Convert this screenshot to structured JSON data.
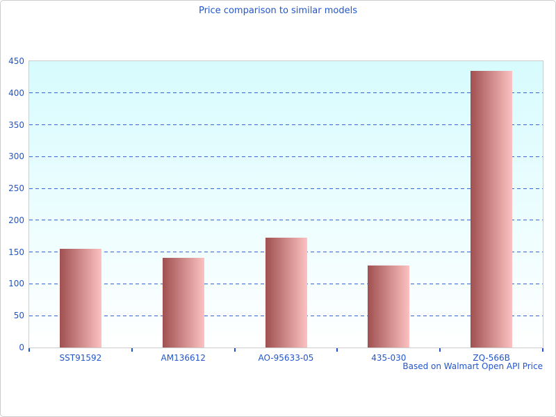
{
  "window": {
    "background_color": "#ffffff",
    "frame_border_color": "#cccccc"
  },
  "chart": {
    "title": "Price comparison to similar models",
    "footer_note": "Based on Walmart Open API Price",
    "text_color": "#2155cc",
    "grid_color": "#3366cc",
    "tick_color": "#2155cc",
    "plot_border_color": "#cccccc",
    "plot_bg_top": "#d7fbfd",
    "plot_bg_bottom": "#ffffff",
    "bar_gradient_left": "#a05050",
    "bar_gradient_right": "#fcc1c1"
  },
  "chart_data": {
    "type": "bar",
    "title": "Price comparison to similar models",
    "categories": [
      "SST91592",
      "AM136612",
      "AO-95633-05",
      "435-030",
      "ZQ-566B"
    ],
    "values": [
      155,
      141,
      173,
      129,
      435
    ],
    "series_name": "Price",
    "xlabel": "",
    "ylabel": "",
    "ylim": [
      0,
      450
    ],
    "ytick_step": 50,
    "yticks": [
      0,
      50,
      100,
      150,
      200,
      250,
      300,
      350,
      400,
      450
    ],
    "grid": "horizontal-dashed",
    "legend": "none",
    "annotation": "Based on Walmart Open API Price"
  }
}
